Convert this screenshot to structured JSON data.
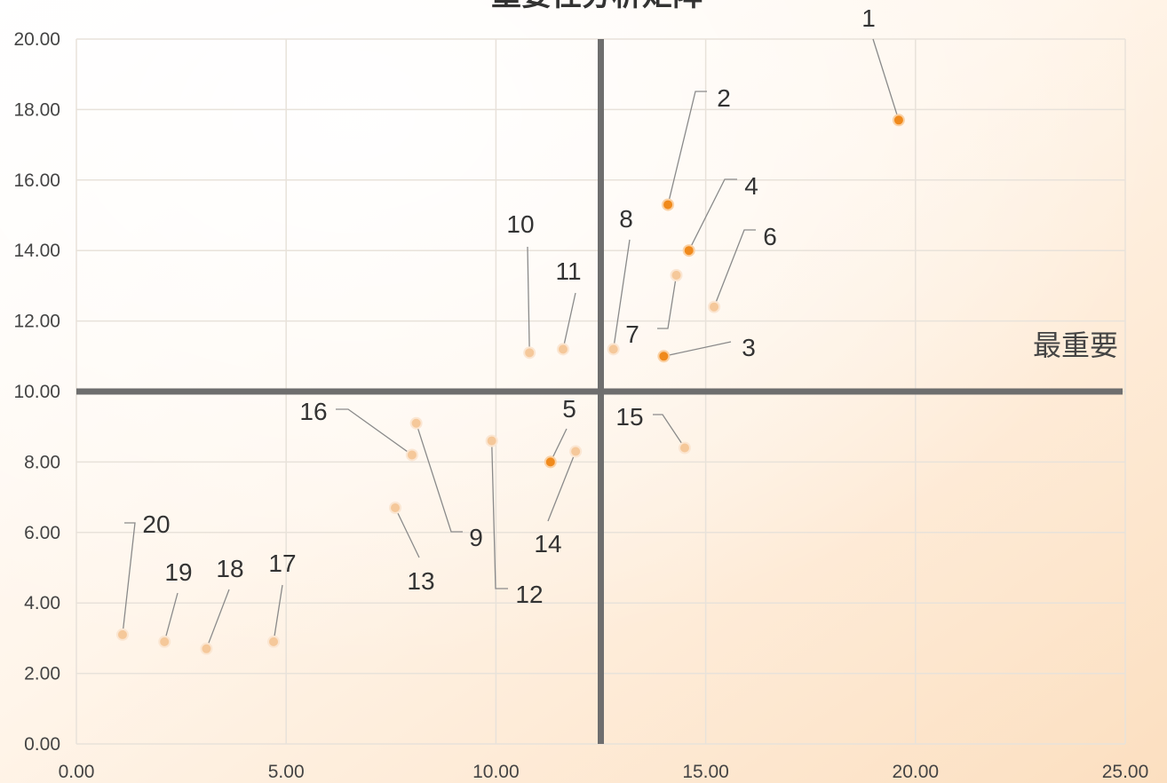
{
  "chart_data": {
    "type": "scatter",
    "title": "重要性分析矩阵",
    "xlim": [
      0,
      25
    ],
    "ylim": [
      0,
      20
    ],
    "x_ticks": [
      "0.00",
      "5.00",
      "10.00",
      "15.00",
      "20.00",
      "25.00"
    ],
    "y_ticks": [
      "0.00",
      "2.00",
      "4.00",
      "6.00",
      "8.00",
      "10.00",
      "12.00",
      "14.00",
      "16.00",
      "18.00",
      "20.00"
    ],
    "x_divider": 12.5,
    "y_divider": 10.0,
    "grid": true,
    "quadrant_label": "最重要",
    "points": [
      {
        "id": "1",
        "x": 19.6,
        "y": 17.7,
        "highlight": true
      },
      {
        "id": "2",
        "x": 14.1,
        "y": 15.3,
        "highlight": true
      },
      {
        "id": "3",
        "x": 14.0,
        "y": 11.0,
        "highlight": true
      },
      {
        "id": "4",
        "x": 14.6,
        "y": 14.0,
        "highlight": true
      },
      {
        "id": "5",
        "x": 11.3,
        "y": 8.0,
        "highlight": true
      },
      {
        "id": "6",
        "x": 15.2,
        "y": 12.4,
        "highlight": false
      },
      {
        "id": "7",
        "x": 14.3,
        "y": 13.3,
        "highlight": false
      },
      {
        "id": "8",
        "x": 12.8,
        "y": 11.2,
        "highlight": false
      },
      {
        "id": "9",
        "x": 8.1,
        "y": 9.1,
        "highlight": false
      },
      {
        "id": "10",
        "x": 10.8,
        "y": 11.1,
        "highlight": false
      },
      {
        "id": "11",
        "x": 11.6,
        "y": 11.2,
        "highlight": false
      },
      {
        "id": "12",
        "x": 9.9,
        "y": 8.6,
        "highlight": false
      },
      {
        "id": "13",
        "x": 7.6,
        "y": 6.7,
        "highlight": false
      },
      {
        "id": "14",
        "x": 11.9,
        "y": 8.3,
        "highlight": false
      },
      {
        "id": "15",
        "x": 14.5,
        "y": 8.4,
        "highlight": false
      },
      {
        "id": "16",
        "x": 8.0,
        "y": 8.2,
        "highlight": false
      },
      {
        "id": "17",
        "x": 4.7,
        "y": 2.9,
        "highlight": false
      },
      {
        "id": "18",
        "x": 3.1,
        "y": 2.7,
        "highlight": false
      },
      {
        "id": "19",
        "x": 2.1,
        "y": 2.9,
        "highlight": false
      },
      {
        "id": "20",
        "x": 1.1,
        "y": 3.1,
        "highlight": false
      }
    ]
  },
  "colors": {
    "highlight": "#F08A1C",
    "highlight_stroke": "#FAD1A4",
    "muted": "#F5C89A",
    "muted_stroke": "#FBE6D2",
    "divider": "#6E6E6E",
    "grid": "#E8E2DA",
    "leader": "#8A8A8A",
    "bg_light": "#FFFDFB",
    "bg_warm": "#FCDDBD"
  }
}
